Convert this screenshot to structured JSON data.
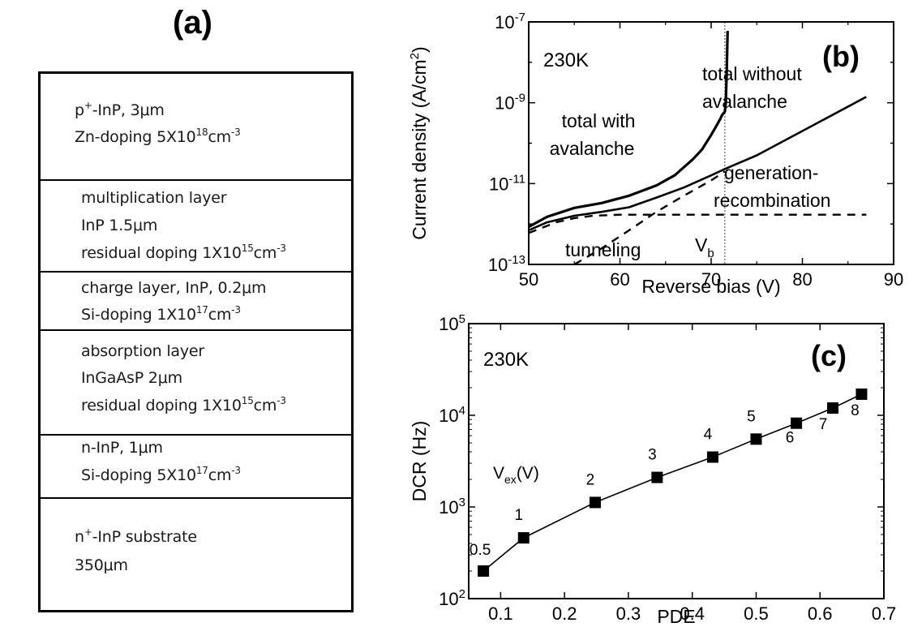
{
  "panel_a": {
    "label": "(a)",
    "layers": [
      {
        "lines": [
          {
            "main": "p",
            "sup": "+",
            "rest": "-InP, 3μm"
          },
          {
            "main": "Zn-doping 5X10",
            "sup": "18",
            "rest": "cm",
            "sup2": "-3"
          }
        ]
      },
      {
        "lines": [
          {
            "main": "multiplication layer"
          },
          {
            "main": "InP 1.5μm"
          },
          {
            "main": "residual doping 1X10",
            "sup": "15",
            "rest": "cm",
            "sup2": "-3"
          }
        ]
      },
      {
        "lines": [
          {
            "main": "charge layer, InP, 0.2μm"
          },
          {
            "main": "Si-doping 1X10",
            "sup": "17",
            "rest": "cm",
            "sup2": "-3"
          }
        ]
      },
      {
        "lines": [
          {
            "main": "absorption layer"
          },
          {
            "main": "InGaAsP 2μm"
          },
          {
            "main": "residual doping 1X10",
            "sup": "15",
            "rest": "cm",
            "sup2": "-3"
          }
        ]
      },
      {
        "lines": [
          {
            "main": "n-InP, 1μm"
          },
          {
            "main": "Si-doping 5X10",
            "sup": "17",
            "rest": "cm",
            "sup2": "-3"
          }
        ]
      },
      {
        "lines": [
          {
            "main": "n",
            "sup": "+",
            "rest": "-InP substrate"
          },
          {
            "main": "350μm"
          }
        ]
      }
    ]
  },
  "chart_data": [
    {
      "panel": "(b)",
      "type": "line",
      "y_scale": "log",
      "xlabel": "Reverse bias (V)",
      "ylabel": "Current density (A/cm²)",
      "xlim": [
        50,
        90
      ],
      "ylim": [
        1e-13,
        1e-07
      ],
      "x_ticks": [
        50,
        60,
        70,
        80,
        90
      ],
      "y_tick_exponents": [
        -13,
        -11,
        -9,
        -7
      ],
      "temperature_label": "230K",
      "annotations": {
        "total_with_avalanche": [
          "total with",
          "avalanche"
        ],
        "total_without_avalanche": [
          "total without",
          "avalanche"
        ],
        "generation_recombination": [
          "generation-",
          "recombination"
        ],
        "tunneling": "tunneling",
        "vb": {
          "main": "V",
          "sub": "b"
        }
      },
      "vb_x": 71.5,
      "series": [
        {
          "x": [
            50,
            52,
            55,
            58,
            61,
            64,
            66,
            68,
            69,
            70,
            70.5,
            71,
            71.2,
            71.5,
            71.6,
            71.7,
            71.8
          ],
          "y": [
            8.5e-13,
            1.5e-12,
            2.5e-12,
            3.3e-12,
            5e-12,
            9e-12,
            1.6e-11,
            4e-11,
            7e-11,
            1.6e-10,
            2.5e-10,
            4e-10,
            5e-10,
            6e-10,
            1e-09,
            5e-09,
            6e-08
          ]
        },
        {
          "x": [
            50,
            52,
            55,
            58,
            61,
            64,
            67,
            70,
            71.5,
            75,
            80,
            87
          ],
          "y": [
            7e-13,
            1.1e-12,
            1.6e-12,
            2e-12,
            2.6e-12,
            4.5e-12,
            8e-12,
            1.6e-11,
            2.3e-11,
            5e-11,
            2e-10,
            1.4e-09
          ]
        },
        {
          "x": [
            50,
            53,
            55,
            57,
            60,
            63,
            87
          ],
          "y": [
            6e-13,
            1.1e-12,
            1.4e-12,
            1.6e-12,
            1.7e-12,
            1.7e-12,
            1.7e-12
          ]
        },
        {
          "x": [
            55,
            58,
            61,
            64,
            67,
            70,
            71.5
          ],
          "y": [
            1e-13,
            2.5e-13,
            7e-13,
            2e-12,
            5e-12,
            1.2e-11,
            2e-11
          ]
        }
      ]
    },
    {
      "panel": "(c)",
      "type": "line",
      "y_scale": "log",
      "xlabel": "PDE",
      "ylabel": "DCR (Hz)",
      "xlim": [
        0.05,
        0.7
      ],
      "ylim": [
        100,
        100000
      ],
      "x_ticks": [
        "0.1",
        "0.2",
        "0.3",
        "0.4",
        "0.5",
        "0.6",
        "0.7"
      ],
      "y_tick_exponents": [
        2,
        3,
        4,
        5
      ],
      "temperature_label": "230K",
      "vex_label": {
        "main": "V",
        "sub": "ex",
        "rest": "(V)"
      },
      "x": [
        0.073,
        0.136,
        0.248,
        0.345,
        0.432,
        0.5,
        0.563,
        0.62,
        0.665
      ],
      "y": [
        200,
        460,
        1120,
        2100,
        3500,
        5500,
        8200,
        12000,
        17000
      ],
      "point_labels": [
        "0.5",
        "1",
        "2",
        "3",
        "4",
        "5",
        "6",
        "7",
        "8"
      ]
    }
  ]
}
